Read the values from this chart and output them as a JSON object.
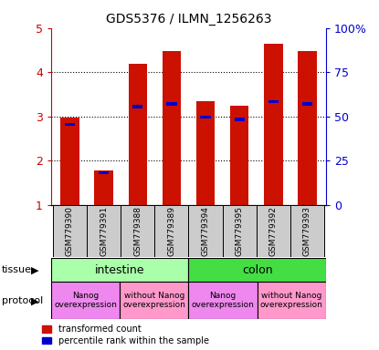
{
  "title": "GDS5376 / ILMN_1256263",
  "samples": [
    "GSM779390",
    "GSM779391",
    "GSM779388",
    "GSM779389",
    "GSM779394",
    "GSM779395",
    "GSM779392",
    "GSM779393"
  ],
  "red_values": [
    2.97,
    1.78,
    4.18,
    4.47,
    3.35,
    3.25,
    4.65,
    4.47
  ],
  "blue_values": [
    2.82,
    1.73,
    3.22,
    3.28,
    2.98,
    2.93,
    3.33,
    3.28
  ],
  "ylim": [
    1,
    5
  ],
  "yticks_left": [
    1,
    2,
    3,
    4,
    5
  ],
  "ytick_labels_left": [
    "1",
    "2",
    "3",
    "4",
    "5"
  ],
  "yticks_right": [
    0,
    25,
    50,
    75,
    100
  ],
  "ytick_labels_right": [
    "0",
    "25",
    "50",
    "75",
    "100%"
  ],
  "ylabel_left_color": "#cc0000",
  "ylabel_right_color": "#0000cc",
  "bar_color_red": "#cc1100",
  "bar_color_blue": "#0000cc",
  "bar_width": 0.55,
  "tissue_intestine_color": "#aaffaa",
  "tissue_colon_color": "#44dd44",
  "protocol_nanog_color": "#ee88ee",
  "protocol_without_color": "#ff99cc",
  "legend_red": "transformed count",
  "legend_blue": "percentile rank within the sample",
  "tissue_label": "tissue",
  "protocol_label": "protocol",
  "intestine_label": "intestine",
  "colon_label": "colon",
  "nanog_label": "Nanog\noverexpression",
  "without_nanog_label": "without Nanog\noverexpression",
  "tick_bg_color": "#cccccc",
  "spine_color": "#000000",
  "grid_color": "#000000"
}
